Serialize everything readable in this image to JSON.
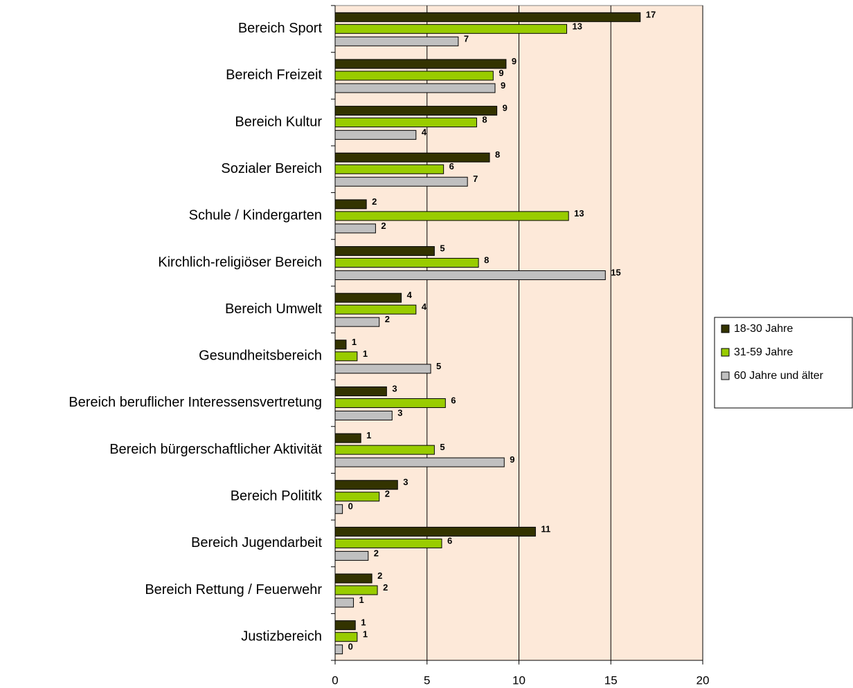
{
  "chart_data": {
    "type": "bar",
    "orientation": "horizontal",
    "categories": [
      "Bereich Sport",
      "Bereich Freizeit",
      "Bereich Kultur",
      "Sozialer Bereich",
      "Schule / Kindergarten",
      "Kirchlich-religiöser Bereich",
      "Bereich Umwelt",
      "Gesundheitsbereich",
      "Bereich beruflicher Interessensvertretung",
      "Bereich bürgerschaftlicher Aktivität",
      "Bereich Polititk",
      "Bereich Jugendarbeit",
      "Bereich Rettung / Feuerwehr",
      "Justizbereich"
    ],
    "series": [
      {
        "name": "18-30 Jahre",
        "color": "#333300",
        "values": [
          16.6,
          9.3,
          8.8,
          8.4,
          1.7,
          5.4,
          3.6,
          0.6,
          2.8,
          1.4,
          3.4,
          10.9,
          2.0,
          1.1
        ],
        "value_labels": [
          "17",
          "9",
          "9",
          "8",
          "2",
          "5",
          "4",
          "1",
          "3",
          "1",
          "3",
          "11",
          "2",
          "1"
        ]
      },
      {
        "name": "31-59 Jahre",
        "color": "#99cc00",
        "values": [
          12.6,
          8.6,
          7.7,
          5.9,
          12.7,
          7.8,
          4.4,
          1.2,
          6.0,
          5.4,
          2.4,
          5.8,
          2.3,
          1.2
        ],
        "value_labels": [
          "13",
          "9",
          "8",
          "6",
          "13",
          "8",
          "4",
          "1",
          "6",
          "5",
          "2",
          "6",
          "2",
          "1"
        ]
      },
      {
        "name": "60 Jahre und älter",
        "color": "#c0c0c0",
        "values": [
          6.7,
          8.7,
          4.4,
          7.2,
          2.2,
          14.7,
          2.4,
          5.2,
          3.1,
          9.2,
          0.4,
          1.8,
          1.0,
          0.4
        ],
        "value_labels": [
          "7",
          "9",
          "4",
          "7",
          "2",
          "15",
          "2",
          "5",
          "3",
          "9",
          "0",
          "2",
          "1",
          "0"
        ]
      }
    ],
    "xlim": [
      0,
      20
    ],
    "xticks": [
      0,
      5,
      10,
      15,
      20
    ],
    "grid": true,
    "legend": "right",
    "background": "#fde9d9"
  }
}
